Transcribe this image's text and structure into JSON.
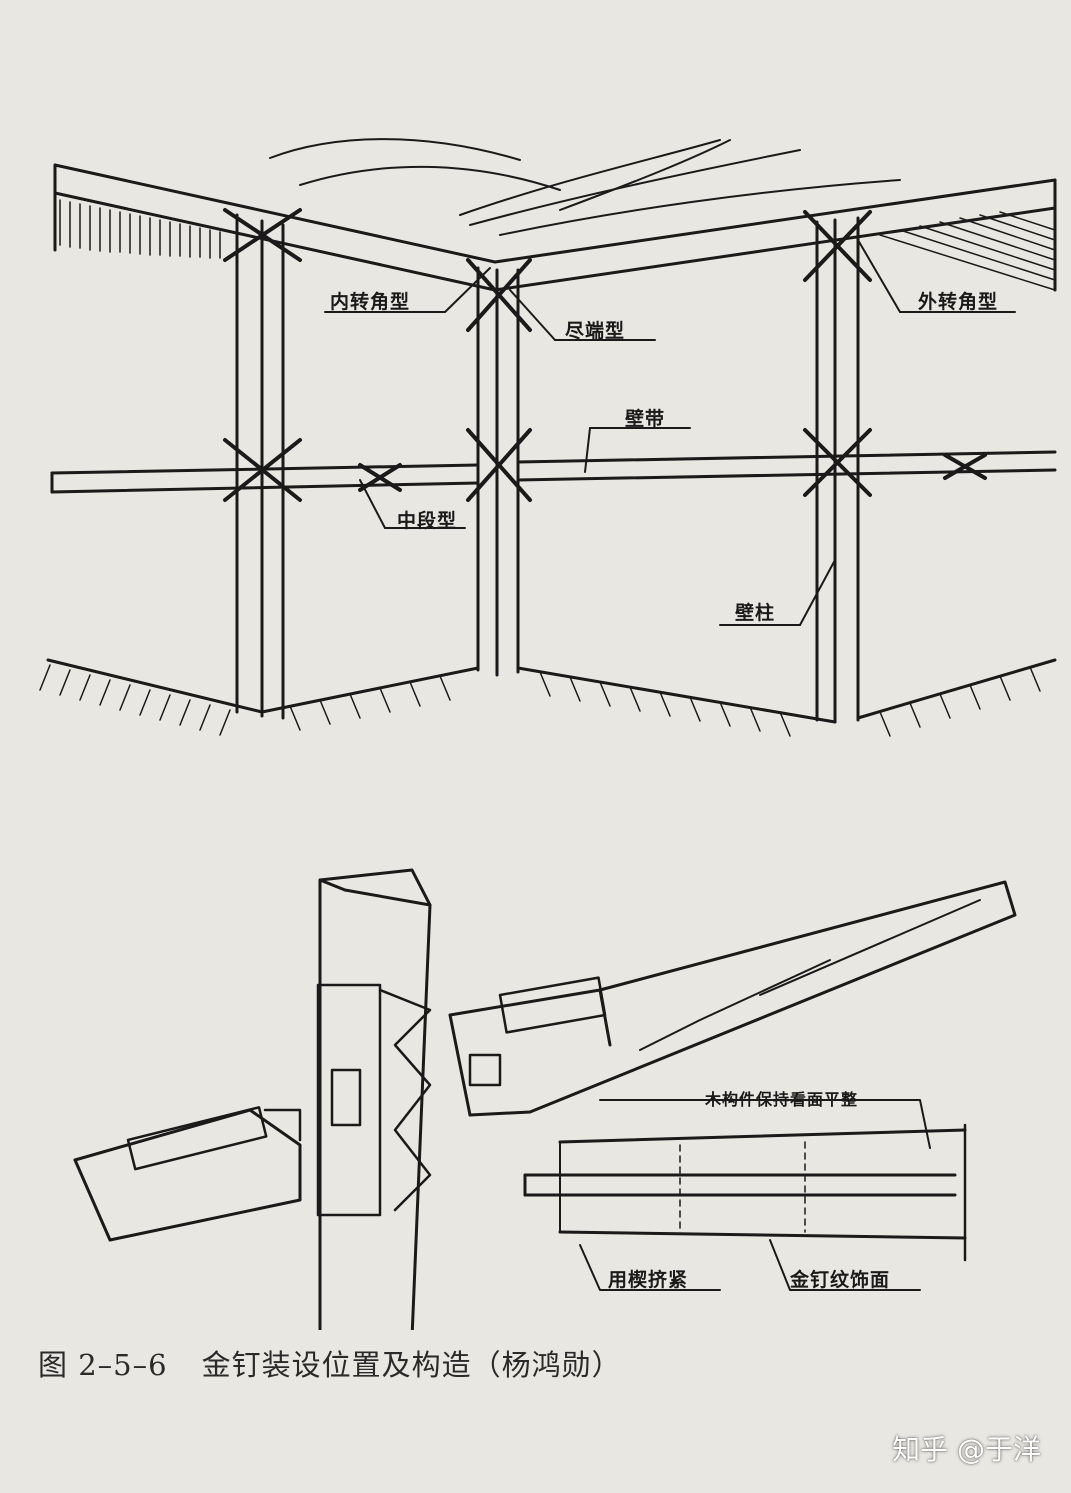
{
  "figure": {
    "labels": {
      "inner_corner": "内转角型",
      "end_type": "尽端型",
      "outer_corner": "外转角型",
      "wall_band": "壁带",
      "middle_type": "中段型",
      "wall_post": "壁柱",
      "face_flat": "木构件保持看面平整",
      "wedge": "用楔挤紧",
      "nail_face": "金钉纹饰面"
    },
    "caption_number": "图 2–5–6",
    "caption_text": "金钉装设位置及构造（杨鸿勋）"
  },
  "watermark": "知乎 @于洋",
  "colors": {
    "paper": "#e9e7e1",
    "ink": "#1a1a1a"
  }
}
